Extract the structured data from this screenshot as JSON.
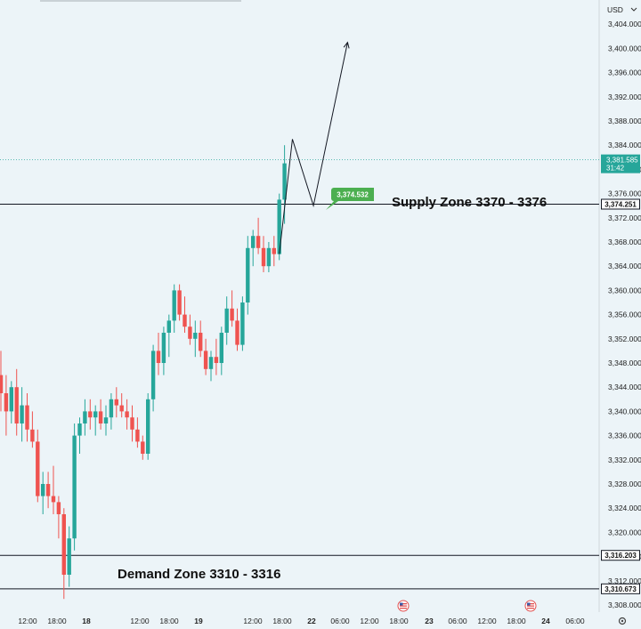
{
  "currency_selector": {
    "label": "USD",
    "icon": "chevron-down-icon"
  },
  "settings_icon": "gear-icon",
  "event_icon": "us-flag-icon",
  "colors": {
    "up": "#26a69a",
    "down": "#ef5350",
    "background": "#ecf4f8",
    "line": "#131722",
    "callout": "#4caf50"
  },
  "chart_data": {
    "type": "candlestick",
    "title": "",
    "ylim": [
      3306,
      3408
    ],
    "y_ticks": [
      "3,308.000",
      "3,312.000",
      "3,316.000",
      "3,320.000",
      "3,324.000",
      "3,328.000",
      "3,332.000",
      "3,336.000",
      "3,340.000",
      "3,344.000",
      "3,348.000",
      "3,352.000",
      "3,356.000",
      "3,360.000",
      "3,364.000",
      "3,368.000",
      "3,372.000",
      "3,376.000",
      "3,380.000",
      "3,384.000",
      "3,388.000",
      "3,392.000",
      "3,396.000",
      "3,400.000",
      "3,404.000"
    ],
    "y_tick_values": [
      3308,
      3312,
      3316,
      3320,
      3324,
      3328,
      3332,
      3336,
      3340,
      3344,
      3348,
      3352,
      3356,
      3360,
      3364,
      3368,
      3372,
      3376,
      3380,
      3384,
      3388,
      3392,
      3396,
      3400,
      3404
    ],
    "x_ticks": [
      "12:00",
      "18:00",
      "18",
      "12:00",
      "18:00",
      "19",
      "12:00",
      "18:00",
      "22",
      "06:00",
      "12:00",
      "18:00",
      "23",
      "06:00",
      "12:00",
      "18:00",
      "24",
      "06:00"
    ],
    "x_tick_bold": [
      false,
      false,
      true,
      false,
      false,
      true,
      false,
      false,
      true,
      false,
      false,
      false,
      true,
      false,
      false,
      false,
      true,
      false
    ],
    "candles": [
      [
        3346,
        3350,
        3340,
        3343
      ],
      [
        3343,
        3346,
        3336,
        3340
      ],
      [
        3340,
        3345,
        3338,
        3344
      ],
      [
        3344,
        3347,
        3336,
        3338
      ],
      [
        3338,
        3344,
        3335,
        3341
      ],
      [
        3341,
        3343,
        3335,
        3337
      ],
      [
        3337,
        3340,
        3334,
        3335
      ],
      [
        3335,
        3337,
        3325,
        3326
      ],
      [
        3326,
        3330,
        3323,
        3328
      ],
      [
        3328,
        3330,
        3324,
        3326
      ],
      [
        3326,
        3331,
        3323,
        3325
      ],
      [
        3325,
        3326,
        3319,
        3323
      ],
      [
        3323,
        3324,
        3309,
        3313
      ],
      [
        3313,
        3321,
        3311,
        3319
      ],
      [
        3319,
        3338,
        3317,
        3336
      ],
      [
        3336,
        3339,
        3333,
        3338
      ],
      [
        3338,
        3342,
        3336,
        3340
      ],
      [
        3340,
        3342,
        3337,
        3339
      ],
      [
        3339,
        3341,
        3336,
        3340
      ],
      [
        3340,
        3342,
        3337,
        3338
      ],
      [
        3338,
        3341,
        3336,
        3339
      ],
      [
        3339,
        3343,
        3337,
        3342
      ],
      [
        3342,
        3344,
        3339,
        3341
      ],
      [
        3341,
        3343,
        3339,
        3340
      ],
      [
        3340,
        3342,
        3337,
        3339
      ],
      [
        3339,
        3341,
        3335,
        3337
      ],
      [
        3337,
        3339,
        3334,
        3335
      ],
      [
        3335,
        3336,
        3332,
        3333
      ],
      [
        3333,
        3343,
        3332,
        3342
      ],
      [
        3342,
        3351,
        3340,
        3350
      ],
      [
        3350,
        3353,
        3346,
        3348
      ],
      [
        3348,
        3354,
        3346,
        3353
      ],
      [
        3353,
        3356,
        3349,
        3355
      ],
      [
        3355,
        3361,
        3353,
        3360
      ],
      [
        3360,
        3361,
        3355,
        3356
      ],
      [
        3356,
        3359,
        3353,
        3354
      ],
      [
        3354,
        3356,
        3351,
        3352
      ],
      [
        3352,
        3355,
        3349,
        3353
      ],
      [
        3353,
        3355,
        3349,
        3350
      ],
      [
        3350,
        3352,
        3346,
        3347
      ],
      [
        3347,
        3350,
        3345,
        3349
      ],
      [
        3349,
        3352,
        3346,
        3348
      ],
      [
        3348,
        3354,
        3346,
        3353
      ],
      [
        3353,
        3359,
        3351,
        3357
      ],
      [
        3357,
        3360,
        3354,
        3355
      ],
      [
        3355,
        3357,
        3350,
        3351
      ],
      [
        3351,
        3359,
        3350,
        3358
      ],
      [
        3358,
        3369,
        3356,
        3367
      ],
      [
        3367,
        3370,
        3364,
        3369
      ],
      [
        3369,
        3372,
        3366,
        3367
      ],
      [
        3367,
        3369,
        3363,
        3364
      ],
      [
        3364,
        3368,
        3363,
        3367
      ],
      [
        3367,
        3369,
        3364,
        3366
      ],
      [
        3366,
        3376,
        3365,
        3375
      ],
      [
        3375,
        3384,
        3371,
        3381
      ]
    ],
    "horizontal_lines": [
      {
        "value": 3374.251,
        "label": "3,374.251"
      },
      {
        "value": 3316.203,
        "label": "3,316.203"
      },
      {
        "value": 3310.673,
        "label": "3,310.673"
      }
    ],
    "current_price": {
      "value": 3381.585,
      "label": "3,381.585",
      "countdown": "31:42"
    },
    "zones": [
      {
        "label": "Supply Zone 3370 - 3376"
      },
      {
        "label": "Demand Zone 3310 - 3316"
      }
    ],
    "projection_path": [
      {
        "candle_index": 53,
        "value": 3366
      },
      {
        "candle_index": 55.5,
        "value": 3385
      },
      {
        "candle_index": 59.5,
        "value": 3374
      },
      {
        "candle_index": 66,
        "value": 3401
      }
    ],
    "callout": {
      "label": "3,374.532",
      "value": 3374.532,
      "candle_index": 61
    }
  }
}
